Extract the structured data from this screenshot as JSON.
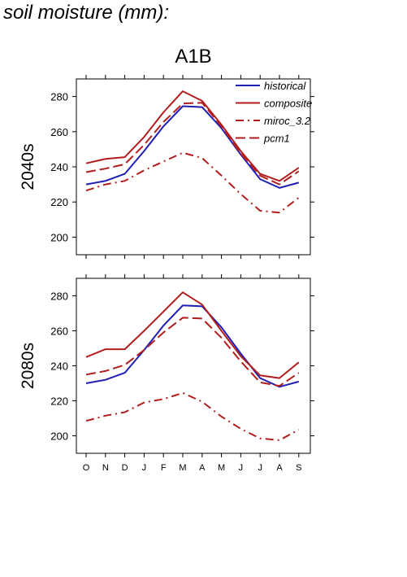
{
  "header": {
    "title": "soil moisture (mm):",
    "scenario": "A1B"
  },
  "legend": [
    {
      "label": "historical",
      "color": "#1f1fb4",
      "style": "solid"
    },
    {
      "label": "composite",
      "color": "#b21e1e",
      "style": "solid"
    },
    {
      "label": "miroc_3.2",
      "color": "#b21e1e",
      "style": "dashdot"
    },
    {
      "label": "pcm1",
      "color": "#b21e1e",
      "style": "dashed"
    }
  ],
  "chart_data": [
    {
      "type": "line",
      "ylabel": "2040s",
      "ylim": [
        190,
        290
      ],
      "yticks": [
        200,
        220,
        240,
        260,
        280
      ],
      "categories": [
        "O",
        "N",
        "D",
        "J",
        "F",
        "M",
        "A",
        "M",
        "J",
        "J",
        "A",
        "S"
      ],
      "legend_position": "top-right",
      "series": [
        {
          "name": "historical",
          "color": "#1f1fb4",
          "style": "solid",
          "values": [
            230,
            232,
            236,
            249,
            263,
            274.5,
            274,
            262,
            247,
            233,
            228,
            231
          ]
        },
        {
          "name": "composite",
          "color": "#b21e1e",
          "style": "solid",
          "values": [
            242,
            244.5,
            245.5,
            257,
            271,
            283,
            277.5,
            264,
            249,
            236,
            232,
            239.5
          ]
        },
        {
          "name": "miroc_3.2",
          "color": "#b21e1e",
          "style": "dashdot",
          "values": [
            226.5,
            230,
            232,
            238,
            243,
            248,
            245,
            235,
            224.5,
            215,
            214,
            222.5
          ]
        },
        {
          "name": "pcm1",
          "color": "#b21e1e",
          "style": "dashed",
          "values": [
            237,
            239,
            241.5,
            252.5,
            265.5,
            276,
            276.5,
            263,
            247.5,
            235,
            230,
            237.5
          ]
        }
      ]
    },
    {
      "type": "line",
      "ylabel": "2080s",
      "ylim": [
        190,
        290
      ],
      "yticks": [
        200,
        220,
        240,
        260,
        280
      ],
      "categories": [
        "O",
        "N",
        "D",
        "J",
        "F",
        "M",
        "A",
        "M",
        "J",
        "J",
        "A",
        "S"
      ],
      "series": [
        {
          "name": "historical",
          "color": "#1f1fb4",
          "style": "solid",
          "values": [
            230,
            232,
            236,
            249,
            263,
            274.5,
            274,
            262,
            247,
            233,
            228,
            231
          ]
        },
        {
          "name": "composite",
          "color": "#b21e1e",
          "style": "solid",
          "values": [
            245,
            249.5,
            249.5,
            260,
            271,
            282,
            275,
            260,
            245.5,
            234.5,
            233,
            242
          ]
        },
        {
          "name": "miroc_3.2",
          "color": "#b21e1e",
          "style": "dashdot",
          "values": [
            208.5,
            211.5,
            213.5,
            219,
            221,
            224.5,
            219.5,
            211,
            204,
            198.5,
            197.5,
            203.5
          ]
        },
        {
          "name": "pcm1",
          "color": "#b21e1e",
          "style": "dashed",
          "values": [
            235,
            237,
            240.5,
            249,
            259,
            267.5,
            267,
            256,
            242.5,
            230.5,
            228.5,
            236
          ]
        }
      ]
    }
  ]
}
